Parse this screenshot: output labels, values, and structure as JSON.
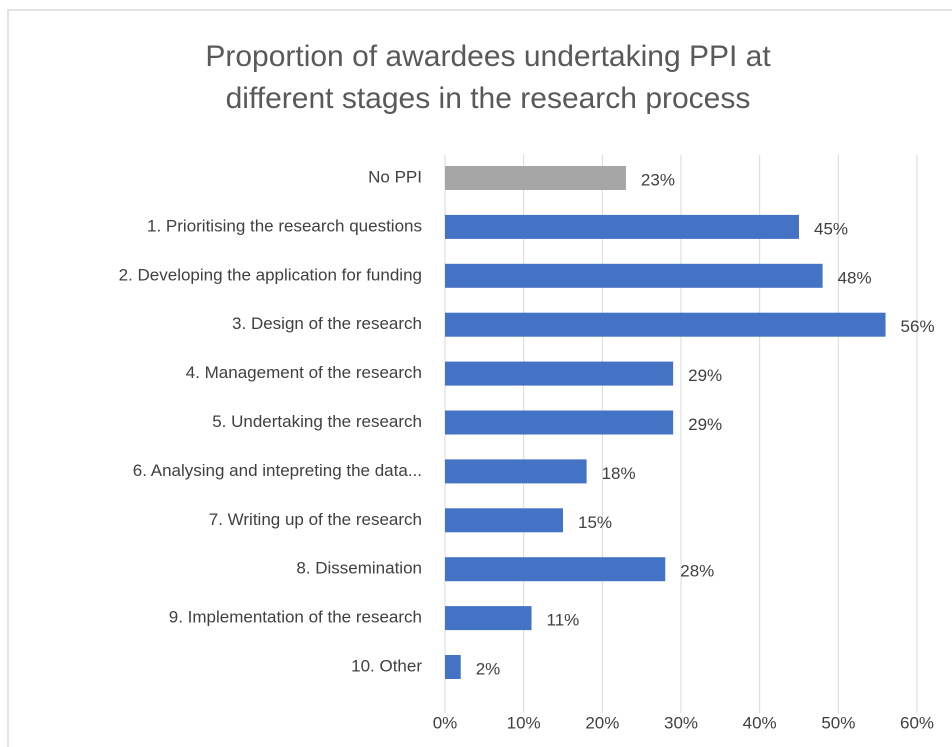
{
  "chart_data": {
    "type": "bar",
    "orientation": "horizontal",
    "title": [
      "Proportion of awardees undertaking PPI at",
      "different stages in the research process"
    ],
    "categories": [
      "No PPI",
      "1. Prioritising the research questions",
      "2. Developing the application for funding",
      "3. Design of the research",
      "4. Management of the research",
      "5. Undertaking the research",
      "6. Analysing and intepreting the data...",
      "7. Writing up of the research",
      "8. Dissemination",
      "9. Implementation of the research",
      "10. Other"
    ],
    "values": [
      23,
      45,
      48,
      56,
      29,
      29,
      18,
      15,
      28,
      11,
      2
    ],
    "value_labels": [
      "23%",
      "45%",
      "48%",
      "56%",
      "29%",
      "29%",
      "18%",
      "15%",
      "28%",
      "11%",
      "2%"
    ],
    "colors": [
      "#a5a5a5",
      "#4472c4",
      "#4472c4",
      "#4472c4",
      "#4472c4",
      "#4472c4",
      "#4472c4",
      "#4472c4",
      "#4472c4",
      "#4472c4",
      "#4472c4"
    ],
    "xlim": [
      0,
      60
    ],
    "xticks": [
      {
        "value": 0,
        "label": "0%"
      },
      {
        "value": 10,
        "label": "10%"
      },
      {
        "value": 20,
        "label": "20%"
      },
      {
        "value": 30,
        "label": "30%"
      },
      {
        "value": 40,
        "label": "40%"
      },
      {
        "value": 50,
        "label": "50%"
      },
      {
        "value": 60,
        "label": "60%"
      }
    ],
    "grid": true
  }
}
